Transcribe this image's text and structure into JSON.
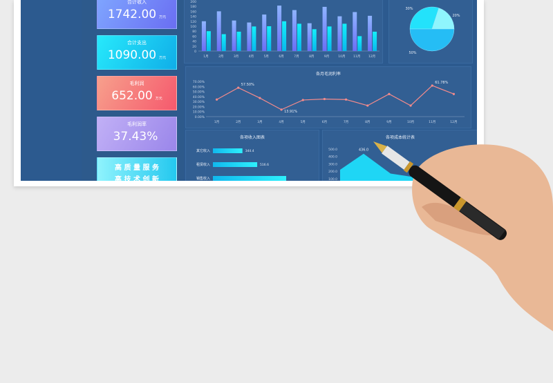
{
  "cards": [
    {
      "label": "合计收入",
      "value": "1742.00",
      "unit": "万元",
      "grad": [
        "#7fa6ff",
        "#6a6ef2"
      ]
    },
    {
      "label": "合计支出",
      "value": "1090.00",
      "unit": "万元",
      "grad": [
        "#27e9fb",
        "#10aee8"
      ]
    },
    {
      "label": "毛利润",
      "value": "652.00",
      "unit": "万元",
      "grad": [
        "#f7a08c",
        "#f5596d"
      ]
    },
    {
      "label": "毛利润率",
      "value": "37.43%",
      "unit": "",
      "grad": [
        "#c1b0f6",
        "#9a86ea"
      ]
    }
  ],
  "slogan": {
    "line1": "高 质 量 服 务",
    "line2": "高 技 术 创 新"
  },
  "chart_data": [
    {
      "type": "bar",
      "categories": [
        "1月",
        "2月",
        "3月",
        "4月",
        "5月",
        "6月",
        "7月",
        "8月",
        "9月",
        "10月",
        "11月",
        "12月"
      ],
      "yticks": [
        "0",
        "20",
        "40",
        "60",
        "80",
        "100",
        "120",
        "140",
        "160",
        "180",
        "200"
      ],
      "ylim": [
        0,
        200
      ],
      "series": [
        {
          "values": [
            120,
            160,
            123,
            115,
            147,
            183,
            165,
            112,
            178,
            140,
            157,
            142
          ],
          "color": "#7f9cff"
        },
        {
          "values": [
            80,
            68,
            78,
            99,
            100,
            120,
            110,
            88,
            99,
            110,
            60,
            78
          ],
          "color": "#11d9f2"
        }
      ]
    },
    {
      "type": "pie",
      "values": [
        30,
        20,
        50
      ],
      "labels": [
        "30%",
        "20%",
        "50%"
      ],
      "colors": [
        "#23e2fb",
        "#8ff5fd",
        "#25bdf5"
      ]
    },
    {
      "type": "line",
      "title": "各月毛润利率",
      "categories": [
        "1月",
        "2月",
        "3月",
        "4月",
        "5月",
        "6月",
        "7月",
        "8月",
        "9月",
        "10月",
        "11月",
        "12月"
      ],
      "yticks": [
        "0.00%",
        "10.00%",
        "20.00%",
        "30.00%",
        "40.00%",
        "50.00%",
        "60.00%",
        "70.00%"
      ],
      "ylim": [
        0,
        70
      ],
      "values": [
        34,
        57.5,
        37,
        13.91,
        33,
        35,
        34,
        22,
        45,
        22,
        61.78,
        45
      ],
      "labels": {
        "1": "57.50%",
        "3": "13.91%",
        "10": "61.78%"
      },
      "color": "#f58b8b"
    },
    {
      "type": "bar",
      "title": "各项收入图表",
      "orientation": "horizontal",
      "categories": [
        "其它收入",
        "租赁收入",
        "销售收入"
      ],
      "values": [
        344.4,
        516.6,
        855
      ],
      "value_labels": [
        "344.4",
        "516.6",
        ""
      ]
    },
    {
      "type": "area",
      "title": "各项成本统计表",
      "yticks": [
        "100.0",
        "200.0",
        "300.0",
        "400.0",
        "500.0"
      ],
      "values": [
        220,
        436,
        170,
        120
      ],
      "value_labels": [
        "",
        "436.0",
        "",
        ""
      ],
      "color": "#1fd6f5"
    }
  ]
}
